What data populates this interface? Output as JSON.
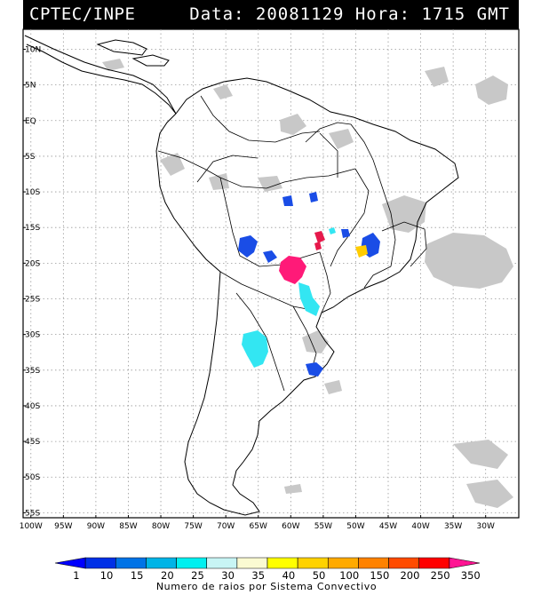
{
  "header": {
    "source": "CPTEC/INPE",
    "stamp": "Data: 20081129 Hora: 1715 GMT"
  },
  "map": {
    "lat_labels": [
      "10N",
      "5N",
      "EQ",
      "5S",
      "10S",
      "15S",
      "20S",
      "25S",
      "30S",
      "35S",
      "40S",
      "45S",
      "50S",
      "55S"
    ],
    "lon_labels": [
      "100W",
      "95W",
      "90W",
      "85W",
      "80W",
      "75W",
      "70W",
      "65W",
      "60W",
      "55W",
      "50W",
      "45W",
      "40W",
      "35W",
      "30W"
    ],
    "grid": true,
    "features": [
      {
        "kind": "cloud",
        "lat": -20,
        "lon": -37,
        "color": "#c8c8c8"
      },
      {
        "kind": "cloud",
        "lat": -15,
        "lon": -45,
        "color": "#c8c8c8"
      },
      {
        "kind": "lightning",
        "lat": -20.5,
        "lon": -60.5,
        "count_color": "#ff1a78"
      },
      {
        "kind": "lightning",
        "lat": -31.5,
        "lon": -64,
        "count_color": "#33e6f2"
      },
      {
        "kind": "lightning",
        "lat": -18,
        "lon": -64.5,
        "count_color": "#1a4de6"
      },
      {
        "kind": "lightning",
        "lat": -17.5,
        "lon": -48,
        "count_color": "#1a4de6"
      }
    ]
  },
  "colorbar": {
    "labels": [
      "1",
      "10",
      "15",
      "20",
      "25",
      "30",
      "35",
      "40",
      "50",
      "100",
      "150",
      "200",
      "250",
      "350"
    ],
    "colors": [
      "#0000ff",
      "#0030e6",
      "#0073e6",
      "#00b4e6",
      "#00f0f0",
      "#c8f5f5",
      "#fafad2",
      "#ffff00",
      "#ffd200",
      "#ffaa00",
      "#ff8200",
      "#ff4b00",
      "#ff0000",
      "#ff1493"
    ],
    "title": "Numero de raios por Sistema Convectivo"
  }
}
